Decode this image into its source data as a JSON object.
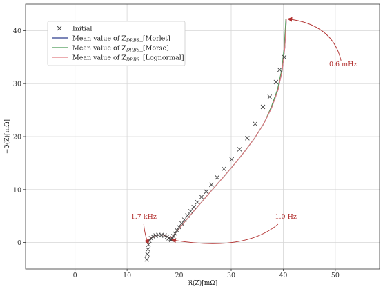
{
  "chart_data": {
    "type": "line",
    "xlabel": "ℜ(Z)[mΩ]",
    "ylabel": "−ℑ(Z)[mΩ]",
    "xlim": [
      -9.5,
      58.5
    ],
    "ylim": [
      -5,
      45
    ],
    "xticks": [
      0,
      10,
      20,
      30,
      40,
      50
    ],
    "yticks": [
      0,
      10,
      20,
      30,
      40
    ],
    "grid": true,
    "legend_position": "top-left",
    "scatter": {
      "name": "Initial",
      "marker": "x",
      "color": "#444444",
      "x": [
        13.8,
        13.9,
        14.0,
        14.1,
        14.3,
        14.6,
        15.0,
        15.5,
        16.0,
        16.6,
        17.2,
        17.7,
        18.0,
        18.3,
        18.5,
        18.7,
        18.9,
        19.2,
        19.6,
        20.0,
        20.5,
        21.0,
        21.6,
        22.2,
        22.8,
        23.5,
        24.3,
        25.2,
        26.2,
        27.3,
        28.6,
        30.1,
        31.6,
        33.1,
        34.6,
        36.1,
        37.4,
        38.6,
        39.3,
        40.2
      ],
      "y": [
        -3.2,
        -2.2,
        -1.3,
        -0.4,
        0.3,
        0.8,
        1.1,
        1.3,
        1.4,
        1.4,
        1.3,
        1.1,
        0.8,
        0.6,
        0.5,
        0.8,
        1.2,
        1.7,
        2.3,
        2.9,
        3.6,
        4.3,
        5.1,
        5.9,
        6.7,
        7.6,
        8.6,
        9.6,
        10.9,
        12.3,
        13.9,
        15.7,
        17.6,
        19.7,
        22.4,
        25.6,
        27.5,
        30.3,
        32.6,
        35.0
      ]
    },
    "series": [
      {
        "name": "Mean value of Z_DRBS_[Morlet]",
        "color": "#2d3f8e",
        "x": [
          14.0,
          14.2,
          14.6,
          15.1,
          15.7,
          16.4,
          17.0,
          17.6,
          18.0,
          18.4,
          18.8,
          19.5,
          20.4,
          21.5,
          22.7,
          24.1,
          25.6,
          27.2,
          28.9,
          30.7,
          32.6,
          34.5,
          36.3,
          37.8,
          39.0,
          39.8,
          40.3,
          40.6
        ],
        "y": [
          0.0,
          0.5,
          0.9,
          1.2,
          1.4,
          1.45,
          1.4,
          1.2,
          1.0,
          0.9,
          1.2,
          2.0,
          3.1,
          4.4,
          5.8,
          7.4,
          9.1,
          10.9,
          12.8,
          14.9,
          17.2,
          19.7,
          22.5,
          25.5,
          28.8,
          32.5,
          36.8,
          42.2
        ]
      },
      {
        "name": "Mean value of Z_DRBS_[Morse]",
        "color": "#4a9a56",
        "x": [
          14.0,
          14.2,
          14.6,
          15.1,
          15.7,
          16.4,
          17.0,
          17.6,
          18.0,
          18.4,
          18.8,
          19.5,
          20.4,
          21.5,
          22.7,
          24.1,
          25.6,
          27.2,
          28.9,
          30.7,
          32.6,
          34.5,
          36.3,
          37.7,
          38.9,
          39.7,
          40.2,
          40.5
        ],
        "y": [
          0.0,
          0.5,
          0.9,
          1.2,
          1.4,
          1.45,
          1.4,
          1.2,
          1.0,
          0.9,
          1.2,
          2.0,
          3.1,
          4.4,
          5.8,
          7.4,
          9.1,
          10.9,
          12.8,
          14.9,
          17.2,
          19.7,
          22.5,
          25.6,
          28.9,
          32.6,
          36.9,
          42.2
        ]
      },
      {
        "name": "Mean value of Z_DRBS_[Lognormal]",
        "color": "#e07a80",
        "x": [
          14.0,
          14.2,
          14.6,
          15.1,
          15.7,
          16.4,
          17.0,
          17.6,
          18.0,
          18.4,
          18.8,
          19.5,
          20.4,
          21.5,
          22.7,
          24.1,
          25.6,
          27.2,
          28.9,
          30.7,
          32.6,
          34.5,
          36.3,
          37.8,
          39.0,
          39.8,
          40.3,
          40.6
        ],
        "y": [
          0.0,
          0.5,
          0.9,
          1.2,
          1.4,
          1.45,
          1.4,
          1.2,
          1.0,
          0.9,
          1.2,
          2.0,
          3.1,
          4.4,
          5.8,
          7.4,
          9.1,
          10.9,
          12.8,
          14.9,
          17.2,
          19.7,
          22.5,
          25.5,
          28.8,
          32.5,
          36.8,
          42.2
        ]
      }
    ],
    "legend": {
      "initial": "Initial",
      "prefix": "Mean value of Z",
      "subscript": "DRBS",
      "suffixes": [
        "_[Morlet]",
        "_[Morse]",
        "_[Lognormal]"
      ]
    },
    "annotations": [
      {
        "text": "1.7 kHz",
        "x": 13.2,
        "y": 4.5,
        "target_x": 14.1,
        "target_y": -0.2
      },
      {
        "text": "1.0 Hz",
        "x": 40.5,
        "y": 4.5,
        "target_x": 18.6,
        "target_y": 0.5
      },
      {
        "text": "0.6 mHz",
        "x": 51.5,
        "y": 33.3,
        "target_x": 40.9,
        "target_y": 42.2
      }
    ]
  }
}
